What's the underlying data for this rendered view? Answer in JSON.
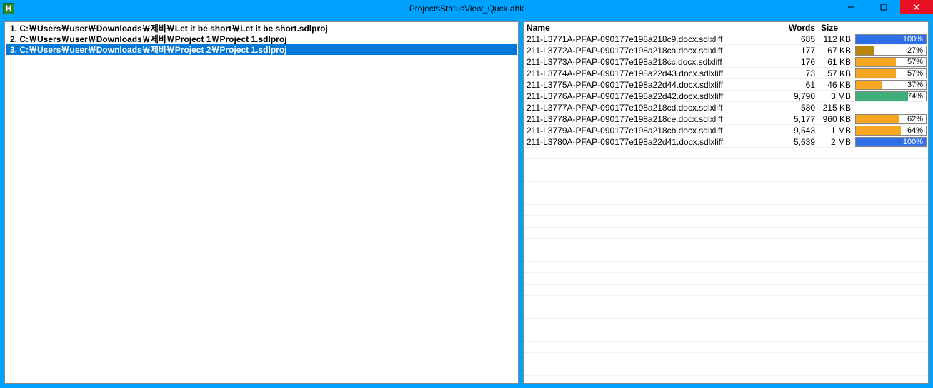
{
  "window": {
    "title": "ProjectsStatusView_Quck.ahk",
    "icon_letter": "H"
  },
  "projects": [
    {
      "index": "1.",
      "path": "C:\\Users\\user\\Downloads\\제비\\Let it be short\\Let it be short.sdlproj",
      "selected": false
    },
    {
      "index": "2.",
      "path": "C:\\Users\\user\\Downloads\\제비\\Project 1\\Project 1.sdlproj",
      "selected": false
    },
    {
      "index": "3.",
      "path": "C:\\Users\\user\\Downloads\\제비\\Project 2\\Project 1.sdlproj",
      "selected": true
    }
  ],
  "headers": {
    "name": "Name",
    "words": "Words",
    "size": "Size"
  },
  "files": [
    {
      "name": "211-L3771A-PFAP-090177e198a218c9.docx.sdlxliff",
      "words": "685",
      "size": "112 KB",
      "percent": 100,
      "color": "#2e6fe8",
      "label_color": "#fff"
    },
    {
      "name": "211-L3772A-PFAP-090177e198a218ca.docx.sdlxliff",
      "words": "177",
      "size": "67 KB",
      "percent": 27,
      "color": "#b8860b",
      "label_color": "#000"
    },
    {
      "name": "211-L3773A-PFAP-090177e198a218cc.docx.sdlxliff",
      "words": "176",
      "size": "61 KB",
      "percent": 57,
      "color": "#f5a623",
      "label_color": "#000"
    },
    {
      "name": "211-L3774A-PFAP-090177e198a22d43.docx.sdlxliff",
      "words": "73",
      "size": "57 KB",
      "percent": 57,
      "color": "#f5a623",
      "label_color": "#000"
    },
    {
      "name": "211-L3775A-PFAP-090177e198a22d44.docx.sdlxliff",
      "words": "61",
      "size": "46 KB",
      "percent": 37,
      "color": "#f5a623",
      "label_color": "#000"
    },
    {
      "name": "211-L3776A-PFAP-090177e198a22d42.docx.sdlxliff",
      "words": "9,790",
      "size": "3 MB",
      "percent": 74,
      "color": "#3fae7a",
      "label_color": "#000"
    },
    {
      "name": "211-L3777A-PFAP-090177e198a218cd.docx.sdlxliff",
      "words": "580",
      "size": "215 KB",
      "percent": null
    },
    {
      "name": "211-L3778A-PFAP-090177e198a218ce.docx.sdlxliff",
      "words": "5,177",
      "size": "960 KB",
      "percent": 62,
      "color": "#f5a623",
      "label_color": "#000"
    },
    {
      "name": "211-L3779A-PFAP-090177e198a218cb.docx.sdlxliff",
      "words": "9,543",
      "size": "1 MB",
      "percent": 64,
      "color": "#f5a623",
      "label_color": "#000"
    },
    {
      "name": "211-L3780A-PFAP-090177e198a22d41.docx.sdlxliff",
      "words": "5,639",
      "size": "2 MB",
      "percent": 100,
      "color": "#2e6fe8",
      "label_color": "#fff"
    }
  ],
  "empty_rows": 20
}
